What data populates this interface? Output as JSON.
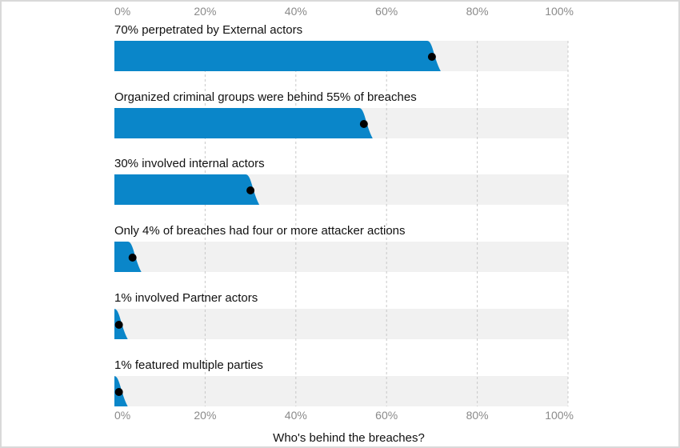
{
  "chart_data": {
    "type": "bar",
    "orientation": "horizontal",
    "title": "Who's behind the breaches?",
    "xlim": [
      0,
      100
    ],
    "x_ticks": [
      "0%",
      "20%",
      "40%",
      "60%",
      "80%",
      "100%"
    ],
    "grid": true,
    "colors": {
      "bar": "#0a86c9",
      "track": "#f1f1f1",
      "marker": "#000000",
      "grid": "#c9c9c9"
    },
    "categories": [
      "70% perpetrated by External actors",
      "Organized criminal groups were behind 55% of breaches",
      "30% involved internal actors",
      "Only 4% of breaches had four or more attacker actions",
      "1% involved Partner actors",
      "1% featured multiple parties"
    ],
    "values": [
      70,
      55,
      30,
      4,
      1,
      1
    ]
  }
}
